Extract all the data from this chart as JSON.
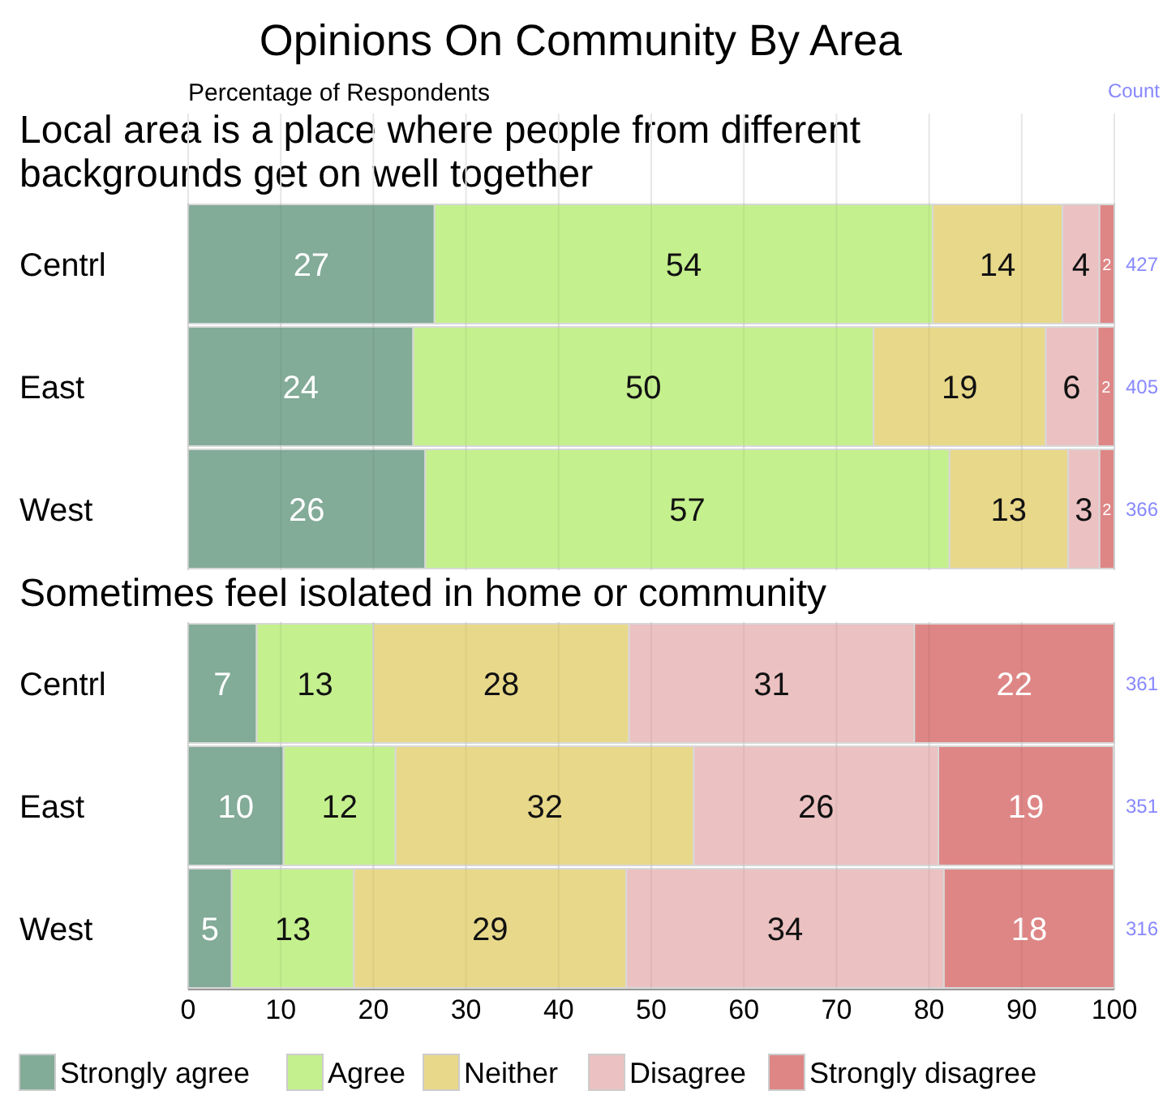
{
  "chart_data": [
    {
      "type": "bar",
      "orientation": "horizontal",
      "stacked": true,
      "title": "Opinions On Community By Area",
      "xlabel": "Percentage of Respondents",
      "subtitle": "Local area is a place where people from different backgrounds get on well together",
      "categories": [
        "Centrl",
        "East",
        "West"
      ],
      "xlim": [
        0,
        100
      ],
      "xticks": [
        0,
        10,
        20,
        30,
        40,
        50,
        60,
        70,
        80,
        90,
        100
      ],
      "tick_labels": "y",
      "grid": "x",
      "series": [
        {
          "color": "#82ab98",
          "values": [
            26.6,
            24.3,
            25.6
          ],
          "value_labels": [
            "27",
            "24",
            "26"
          ]
        },
        {
          "color": "#c4f08e",
          "values": [
            53.8,
            49.7,
            56.6
          ],
          "value_labels": [
            "54",
            "50",
            "57"
          ]
        },
        {
          "color": "#e8d88a",
          "values": [
            14.0,
            18.6,
            12.8
          ],
          "value_labels": [
            "14",
            "19",
            "13"
          ]
        },
        {
          "color": "#ebc1c1",
          "values": [
            4.0,
            5.6,
            3.4
          ],
          "value_labels": [
            "4",
            "6",
            "3"
          ]
        },
        {
          "color": "#de8686",
          "values": [
            1.6,
            1.8,
            1.6
          ],
          "value_labels": [
            "2",
            "2",
            "2"
          ]
        }
      ],
      "annotations": [
        "Count",
        "427",
        "405",
        "366"
      ]
    },
    {
      "type": "bar",
      "orientation": "horizontal",
      "stacked": true,
      "subtitle": "Sometimes feel isolated in home or community",
      "categories": [
        "Centrl",
        "East",
        "West"
      ],
      "xlim": [
        0,
        100
      ],
      "xticks": [
        0,
        10,
        20,
        30,
        40,
        50,
        60,
        70,
        80,
        90,
        100
      ],
      "grid": "x",
      "legend": "bottom",
      "series": [
        {
          "name": "Strongly agree",
          "color": "#82ab98",
          "values": [
            7.4,
            10.3,
            4.7
          ],
          "value_labels": [
            "7",
            "10",
            "5"
          ]
        },
        {
          "name": "Agree",
          "color": "#c4f08e",
          "values": [
            12.6,
            12.1,
            13.2
          ],
          "value_labels": [
            "13",
            "12",
            "13"
          ]
        },
        {
          "name": "Neither",
          "color": "#e8d88a",
          "values": [
            27.6,
            32.2,
            29.4
          ],
          "value_labels": [
            "28",
            "32",
            "29"
          ]
        },
        {
          "name": "Disagree",
          "color": "#ebc1c1",
          "values": [
            30.8,
            26.4,
            34.3
          ],
          "value_labels": [
            "31",
            "26",
            "34"
          ]
        },
        {
          "name": "Strongly disagree",
          "color": "#de8686",
          "values": [
            21.6,
            18.9,
            18.4
          ],
          "value_labels": [
            "22",
            "19",
            "18"
          ]
        }
      ],
      "annotations": [
        "361",
        "351",
        "316"
      ]
    }
  ]
}
